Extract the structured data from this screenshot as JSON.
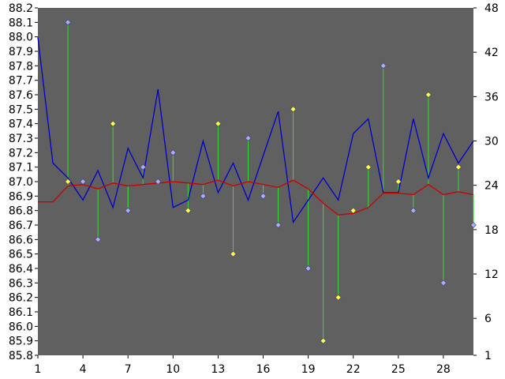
{
  "chart_data": {
    "type": "line",
    "plot_background": "#606060",
    "page_background": "#ffffff",
    "grid": false,
    "legend": "none",
    "x_ticks": [
      1,
      4,
      7,
      10,
      13,
      16,
      19,
      22,
      25,
      28
    ],
    "xlim": [
      1,
      30
    ],
    "left_axis": {
      "ylim": [
        85.8,
        88.2
      ],
      "ticks": [
        "88.2",
        "88.1",
        "88.0",
        "87.9",
        "87.8",
        "87.7",
        "87.6",
        "87.5",
        "87.4",
        "87.3",
        "87.2",
        "87.1",
        "87.0",
        "86.9",
        "86.8",
        "86.7",
        "86.6",
        "86.5",
        "86.4",
        "86.3",
        "86.2",
        "86.1",
        "86.0",
        "85.9",
        "85.8"
      ]
    },
    "right_axis": {
      "ylim": [
        1,
        48
      ],
      "ticks": [
        "48",
        "42",
        "36",
        "30",
        "24",
        "18",
        "12",
        "6",
        "1"
      ]
    },
    "series": [
      {
        "kind": "line",
        "color": "#0000cc",
        "axis": "right",
        "x": [
          1,
          2,
          3,
          4,
          5,
          6,
          7,
          8,
          9,
          10,
          11,
          12,
          13,
          14,
          15,
          16,
          17,
          18,
          19,
          20,
          21,
          22,
          23,
          24,
          25,
          26,
          27,
          28,
          29,
          30
        ],
        "values": [
          44,
          27,
          25,
          22,
          26,
          21,
          29,
          25,
          37,
          21,
          22,
          30,
          23,
          27,
          22,
          28,
          34,
          19,
          22,
          25,
          22,
          31,
          33,
          23,
          23,
          33,
          25,
          31,
          27,
          30
        ]
      },
      {
        "kind": "line",
        "color": "#cc0000",
        "axis": "left",
        "x": [
          1,
          2,
          3,
          4,
          5,
          6,
          7,
          8,
          9,
          10,
          11,
          12,
          13,
          14,
          15,
          16,
          17,
          18,
          19,
          20,
          21,
          22,
          23,
          24,
          25,
          26,
          27,
          28,
          29,
          30
        ],
        "values": [
          86.86,
          86.86,
          86.97,
          86.98,
          86.95,
          86.99,
          86.97,
          86.98,
          86.99,
          87.0,
          86.99,
          86.98,
          87.01,
          86.97,
          87.0,
          86.98,
          86.96,
          87.01,
          86.95,
          86.85,
          86.77,
          86.78,
          86.82,
          86.92,
          86.92,
          86.91,
          86.98,
          86.91,
          86.93,
          86.91
        ]
      },
      {
        "kind": "points",
        "color": "#ffff44",
        "stem_color": "#33dd33",
        "axis": "left",
        "x": [
          3,
          6,
          7,
          11,
          13,
          14,
          18,
          20,
          21,
          22,
          23,
          25,
          27,
          29
        ],
        "values": [
          87.0,
          87.4,
          86.8,
          86.8,
          87.4,
          86.5,
          87.5,
          85.9,
          86.2,
          86.8,
          87.1,
          87.0,
          87.6,
          87.1
        ]
      },
      {
        "kind": "points",
        "color": "#aaaaff",
        "stem_color": "#33dd33",
        "axis": "left",
        "x": [
          3,
          4,
          5,
          7,
          8,
          9,
          10,
          12,
          15,
          16,
          17,
          19,
          24,
          26,
          28,
          30
        ],
        "values": [
          88.1,
          87.0,
          86.6,
          86.8,
          87.1,
          87.0,
          87.2,
          86.9,
          87.3,
          86.9,
          86.7,
          86.4,
          87.8,
          86.8,
          86.3,
          86.7
        ]
      }
    ]
  }
}
